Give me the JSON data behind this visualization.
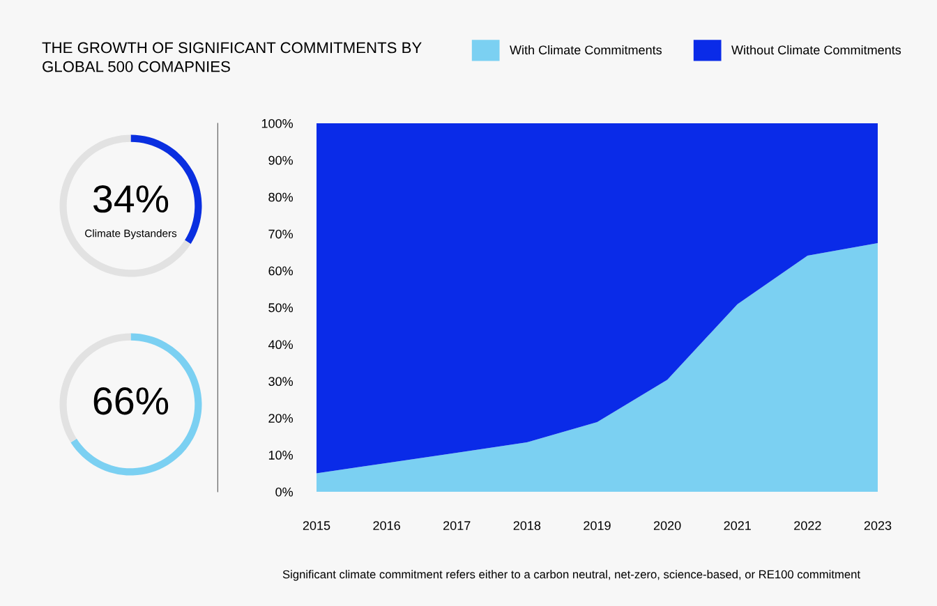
{
  "chart_data": [
    {
      "type": "donut",
      "categories": [
        null,
        null
      ],
      "values": [
        34,
        66
      ],
      "colors": [
        "#0a2fe0",
        "#e2e2e2"
      ],
      "value_labels": [
        "34%",
        null
      ],
      "annotations": [
        "Climate Bystanders"
      ]
    },
    {
      "type": "donut",
      "categories": [
        null,
        null
      ],
      "values": [
        66,
        34
      ],
      "colors": [
        "#7bd0f2",
        "#e2e2e2"
      ],
      "value_labels": [
        "66%",
        null
      ]
    },
    {
      "type": "area",
      "stacked": true,
      "title": "THE GROWTH OF SIGNIFICANT COMMITMENTS BY\nGLOBAL 500 COMAPNIES",
      "x": [
        2015,
        2016,
        2017,
        2018,
        2019,
        2020,
        2021,
        2022,
        2023
      ],
      "series": [
        {
          "name": "With Climate Commitments",
          "color": "#7bd0f2",
          "values": [
            5,
            7.8,
            10.6,
            13.4,
            18.9,
            30.4,
            50.9,
            64.1,
            67.5
          ]
        },
        {
          "name": "Without Climate Commitments",
          "color": "#0a2be8",
          "values": [
            95,
            92.2,
            89.4,
            86.6,
            81.1,
            69.6,
            49.1,
            35.9,
            32.5
          ]
        }
      ],
      "xlim": [
        2015,
        2023
      ],
      "xticks": [
        2015,
        2016,
        2017,
        2018,
        2019,
        2020,
        2021,
        2022,
        2023
      ],
      "ylim": [
        0,
        100
      ],
      "yticks": [
        {
          "value": 0,
          "label": "0%"
        },
        {
          "value": 10,
          "label": "10%"
        },
        {
          "value": 20,
          "label": "20%"
        },
        {
          "value": 30,
          "label": "30%"
        },
        {
          "value": 40,
          "label": "40%"
        },
        {
          "value": 50,
          "label": "50%"
        },
        {
          "value": 60,
          "label": "60%"
        },
        {
          "value": 70,
          "label": "70%"
        },
        {
          "value": 80,
          "label": "80%"
        },
        {
          "value": 90,
          "label": "90%"
        },
        {
          "value": 100,
          "label": "100%"
        }
      ],
      "grid": false,
      "legend": "top right",
      "annotations": [
        "Significant climate commitment refers either to a carbon neutral, net-zero, science-based, or RE100 commitment"
      ]
    }
  ]
}
